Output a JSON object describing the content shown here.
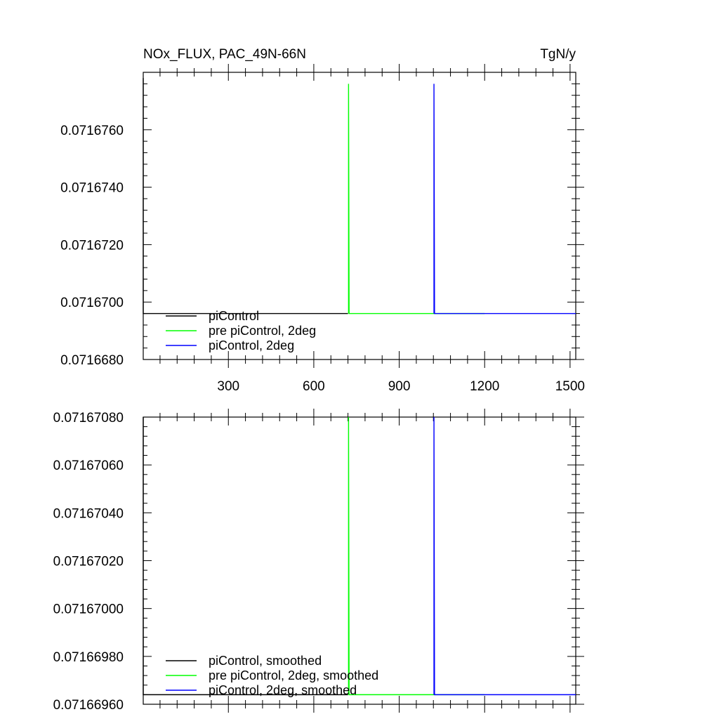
{
  "header": {
    "title_left": "NOx_FLUX, PAC_49N-66N",
    "title_right": "TgN/y"
  },
  "chart_data": [
    {
      "type": "line",
      "title": "NOx_FLUX, PAC_49N-66N",
      "units": "TgN/y",
      "xlim": [
        1,
        1520
      ],
      "ylim": [
        0.071668,
        0.071678
      ],
      "x_ticks": [
        300,
        600,
        900,
        1200,
        1500
      ],
      "x_tick_labels": [
        "300",
        "600",
        "900",
        "1200",
        "1500"
      ],
      "y_ticks": [
        0.071668,
        0.07167,
        0.071672,
        0.071674,
        0.071676
      ],
      "y_tick_labels": [
        "0.0716680",
        "0.0716700",
        "0.0716720",
        "0.0716740",
        "0.0716760"
      ],
      "grid": false,
      "legend_position": "bottom-left",
      "series": [
        {
          "name": "piControl",
          "color": "#000000",
          "x": [
            1,
            1,
            3,
            720
          ],
          "y": [
            0.0716778,
            0.0716696,
            0.0716696,
            0.0716696
          ]
        },
        {
          "name": "pre piControl, 2deg",
          "color": "#00ff00",
          "x": [
            722,
            722,
            724,
            1200
          ],
          "y": [
            0.0716696,
            0.0716776,
            0.0716696,
            0.0716696
          ]
        },
        {
          "name": "piControl, 2deg",
          "color": "#0000ff",
          "x": [
            1022,
            1022,
            1024,
            1520
          ],
          "y": [
            0.0716696,
            0.0716776,
            0.0716696,
            0.0716696
          ]
        }
      ]
    },
    {
      "type": "line",
      "xlim": [
        1,
        1520
      ],
      "ylim": [
        0.0716696,
        0.0716708
      ],
      "x_ticks": [
        300,
        600,
        900,
        1200,
        1500
      ],
      "x_tick_labels": [],
      "y_ticks": [
        0.0716696,
        0.0716698,
        0.07167,
        0.0716702,
        0.0716704,
        0.0716706,
        0.0716708
      ],
      "y_tick_labels": [
        "0.07166960",
        "0.07166980",
        "0.07167000",
        "0.07167020",
        "0.07167040",
        "0.07167060",
        "0.07167080"
      ],
      "grid": false,
      "legend_position": "bottom-left",
      "series": [
        {
          "name": "piControl, smoothed",
          "color": "#000000",
          "x": [
            1,
            1,
            3,
            720
          ],
          "y": [
            0.0716708,
            0.07166964,
            0.07166964,
            0.07166964
          ]
        },
        {
          "name": "pre piControl, 2deg, smoothed",
          "color": "#00ff00",
          "x": [
            722,
            722,
            724,
            1200
          ],
          "y": [
            0.07166964,
            0.0716708,
            0.07166964,
            0.07166964
          ]
        },
        {
          "name": "piControl, 2deg, smoothed",
          "color": "#0000ff",
          "x": [
            1022,
            1022,
            1024,
            1520
          ],
          "y": [
            0.07166964,
            0.0716708,
            0.07166964,
            0.07166964
          ]
        }
      ]
    }
  ]
}
